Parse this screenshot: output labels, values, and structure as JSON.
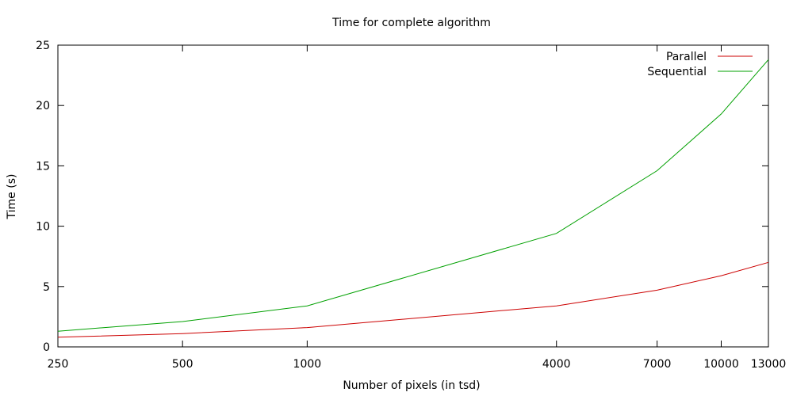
{
  "chart_data": {
    "type": "line",
    "title": "Time for complete algorithm",
    "xlabel": "Number of pixels (in tsd)",
    "ylabel": "Time (s)",
    "x_scale": "log",
    "xlim": [
      250,
      13000
    ],
    "ylim": [
      0,
      25
    ],
    "x_ticks": [
      250,
      500,
      1000,
      4000,
      7000,
      10000,
      13000
    ],
    "y_ticks": [
      0,
      5,
      10,
      15,
      20,
      25
    ],
    "x": [
      250,
      500,
      1000,
      4000,
      7000,
      10000,
      13000
    ],
    "series": [
      {
        "name": "Parallel",
        "color": "#cc0000",
        "values": [
          0.8,
          1.1,
          1.6,
          3.4,
          4.7,
          5.9,
          7.0
        ]
      },
      {
        "name": "Sequential",
        "color": "#00a000",
        "values": [
          1.3,
          2.1,
          3.4,
          9.4,
          14.6,
          19.3,
          23.8
        ]
      }
    ],
    "legend": "top-right",
    "grid": false
  }
}
